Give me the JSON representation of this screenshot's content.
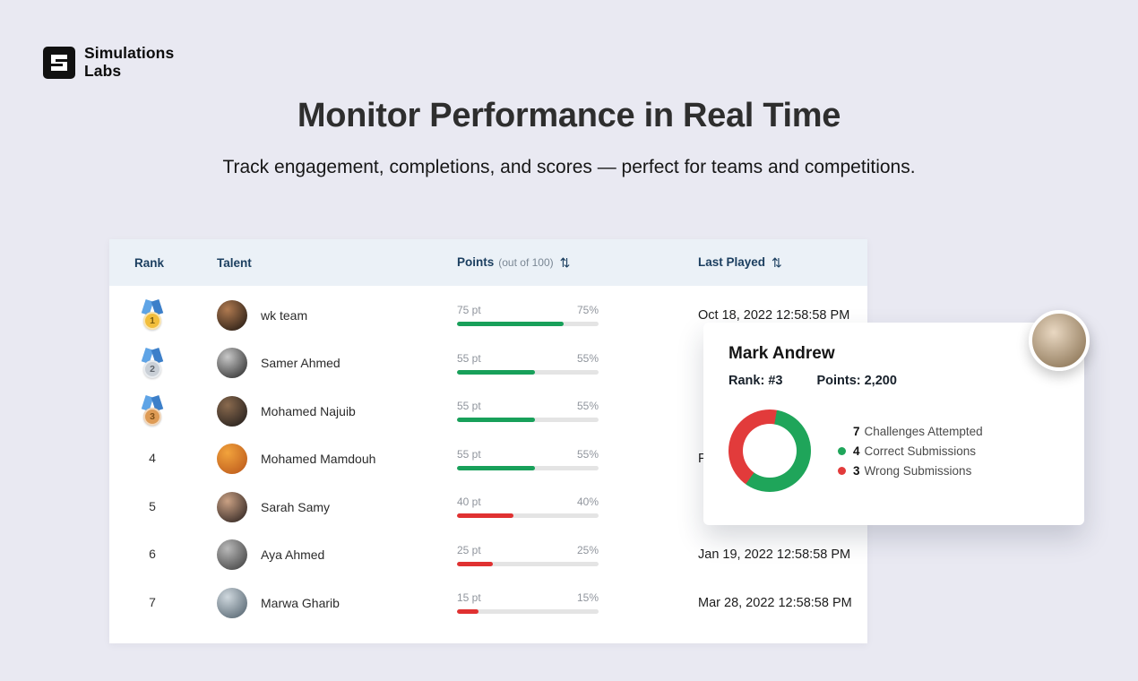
{
  "page": {
    "bg": "#E9E9F2"
  },
  "logo": {
    "line1": "Simulations",
    "line2": "Labs"
  },
  "hero": {
    "title": "Monitor Performance in Real Time",
    "subtitle": "Track engagement, completions, and scores — perfect for teams and competitions."
  },
  "colors": {
    "green": "#18A05A",
    "red": "#E03131",
    "navy": "#1C3F60",
    "table_header_bg": "#EBF1F7",
    "bar_track": "#E4E4E4",
    "gold": "#F2BE3C",
    "silver": "#C9CFD6",
    "bronze": "#DE9B55",
    "ribbon_blue_light": "#5FA4E6",
    "ribbon_blue_dark": "#3C7FC9"
  },
  "leaderboard": {
    "sort_icon": "⇅",
    "columns": {
      "rank": "Rank",
      "talent": "Talent",
      "points": "Points",
      "points_suffix": "(out of 100)",
      "last_played": "Last Played"
    },
    "rows": [
      {
        "rank": "1",
        "medal": "gold",
        "name": "wk team",
        "points": 75,
        "points_label": "75 pt",
        "percent_label": "75%",
        "bar_color": "green",
        "last_played": "Oct 18, 2022 12:58:58 PM",
        "avatar": [
          "#b07a50",
          "#2f2218"
        ]
      },
      {
        "rank": "2",
        "medal": "silver",
        "name": "Samer Ahmed",
        "points": 55,
        "points_label": "55 pt",
        "percent_label": "55%",
        "bar_color": "green",
        "last_played": "",
        "avatar": [
          "#c8c8c8",
          "#3a3a3a"
        ]
      },
      {
        "rank": "3",
        "medal": "bronze",
        "name": "Mohamed Najuib",
        "points": 55,
        "points_label": "55 pt",
        "percent_label": "55%",
        "bar_color": "green",
        "last_played": "",
        "avatar": [
          "#8a6a4e",
          "#2b2420"
        ]
      },
      {
        "rank": "4",
        "medal": null,
        "name": "Mohamed Mamdouh",
        "points": 55,
        "points_label": "55 pt",
        "percent_label": "55%",
        "bar_color": "green",
        "last_played": "F",
        "avatar": [
          "#f2a33c",
          "#c05f1e"
        ]
      },
      {
        "rank": "5",
        "medal": null,
        "name": "Sarah Samy",
        "points": 40,
        "points_label": "40 pt",
        "percent_label": "40%",
        "bar_color": "red",
        "last_played": "",
        "avatar": [
          "#caa184",
          "#3a2d28"
        ]
      },
      {
        "rank": "6",
        "medal": null,
        "name": "Aya Ahmed",
        "points": 25,
        "points_label": "25 pt",
        "percent_label": "25%",
        "bar_color": "red",
        "last_played": "Jan 19, 2022 12:58:58 PM",
        "avatar": [
          "#b9b9b9",
          "#4a4a4a"
        ]
      },
      {
        "rank": "7",
        "medal": null,
        "name": "Marwa Gharib",
        "points": 15,
        "points_label": "15 pt",
        "percent_label": "15%",
        "bar_color": "red",
        "last_played": "Mar 28, 2022 12:58:58 PM",
        "avatar": [
          "#cfd8de",
          "#5e6d78"
        ]
      }
    ]
  },
  "profile_card": {
    "name": "Mark Andrew",
    "rank_label": "Rank: #3",
    "points_label": "Points: 2,200",
    "avatar": [
      "#e9d8c2",
      "#8a7354"
    ],
    "chart_data": {
      "type": "pie",
      "labels": [
        "Correct Submissions",
        "Wrong Submissions"
      ],
      "values": [
        4,
        3
      ],
      "colors": [
        "#1FA55A",
        "#E23B3B"
      ],
      "total_label": "7 Challenges Attempted"
    },
    "legend": [
      {
        "value": "7",
        "label": "Challenges Attempted",
        "color": null
      },
      {
        "value": "4",
        "label": "Correct Submissions",
        "color": "#1FA55A"
      },
      {
        "value": "3",
        "label": "Wrong Submissions",
        "color": "#E23B3B"
      }
    ]
  }
}
